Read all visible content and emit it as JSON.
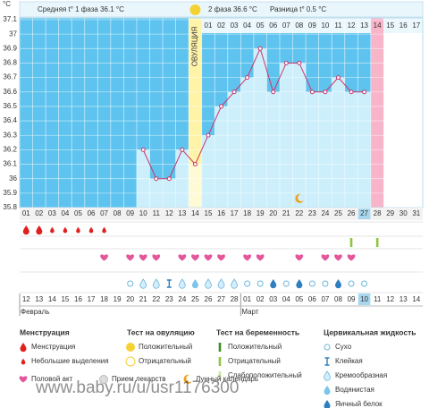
{
  "chart_data": {
    "type": "line",
    "unit_label": "°C",
    "header": {
      "phase1": "Средняя t° 1 фаза 36.1 °C",
      "phase2": "2 фаза 36.6 °C",
      "difference": "Разница t° 0.5 °C"
    },
    "categories": [
      "01",
      "02",
      "03",
      "04",
      "05",
      "06",
      "07",
      "08",
      "09",
      "10",
      "11",
      "12",
      "13",
      "14",
      "15",
      "16",
      "17",
      "18",
      "19",
      "20",
      "21",
      "22",
      "23",
      "24",
      "25",
      "26",
      "27",
      "28",
      "29",
      "30",
      "31"
    ],
    "values": [
      null,
      null,
      null,
      null,
      null,
      null,
      null,
      null,
      null,
      36.2,
      36.0,
      36.0,
      36.2,
      36.1,
      36.3,
      36.5,
      36.6,
      36.7,
      36.9,
      36.6,
      36.8,
      36.8,
      36.6,
      36.6,
      36.7,
      36.6,
      36.6,
      null,
      null,
      null,
      null
    ],
    "color": "#c8376b",
    "ylim": [
      35.8,
      37.1
    ],
    "yticks": [
      35.8,
      35.9,
      36,
      36.1,
      36.2,
      36.3,
      36.4,
      36.5,
      36.6,
      36.7,
      36.8,
      36.9,
      37,
      37.1
    ],
    "grid": true,
    "ovulation_day": 14,
    "ovulation_label": "ОВУЛЯЦИЯ",
    "post_ovulation_labels": [
      "01",
      "02",
      "03",
      "04",
      "05",
      "06",
      "07",
      "08",
      "09",
      "10",
      "11",
      "12",
      "13",
      "14",
      "15",
      "16",
      "17"
    ],
    "today_day": 27,
    "expected_period_day": 28,
    "moon_day": 22,
    "menstruation_days": [
      1,
      2
    ],
    "spotting_days": [
      3,
      4,
      5,
      6,
      7
    ],
    "pregnancy_test_negative_days": [
      26,
      28
    ],
    "intercourse_days": [
      7,
      9,
      10,
      11,
      13,
      14,
      15,
      16,
      18,
      19,
      22,
      24,
      25,
      26
    ],
    "cervical": {
      "dry": [
        9,
        18,
        19,
        21,
        23,
        24,
        26,
        27
      ],
      "sticky": [
        12
      ],
      "creamy": [
        10,
        11,
        13,
        15,
        16,
        17
      ],
      "watery": [
        14
      ],
      "eggwhite": [
        20,
        22,
        25
      ]
    },
    "dates": [
      "12",
      "13",
      "14",
      "15",
      "16",
      "17",
      "18",
      "19",
      "20",
      "21",
      "22",
      "23",
      "24",
      "25",
      "26",
      "27",
      "28",
      "01",
      "02",
      "03",
      "04",
      "05",
      "06",
      "07",
      "08",
      "09",
      "10",
      "11",
      "12",
      "13",
      "14"
    ],
    "weekend_days": [
      3,
      4,
      10,
      11,
      17,
      24,
      25,
      31
    ],
    "months": [
      {
        "label": "Февраль",
        "start_day": 1
      },
      {
        "label": "Март",
        "start_day": 18
      }
    ]
  },
  "legend": {
    "menstruation": {
      "title": "Менструация",
      "items": [
        "Менструация",
        "Небольшие выделения"
      ]
    },
    "ovulation_test": {
      "title": "Тест на овуляцию",
      "items": [
        "Положительный",
        "Отрицательный"
      ]
    },
    "pregnancy_test": {
      "title": "Тест на беременность",
      "items": [
        "Положительный",
        "Отрицательный",
        "Слабоположительный"
      ]
    },
    "cervical": {
      "title": "Цервикальная жидкость",
      "items": [
        "Сухо",
        "Клейкая",
        "Кремообразная",
        "Водянистая",
        "Яичный белок"
      ]
    },
    "other": [
      "Половой акт",
      "Прием лекарств",
      "Лунный календарь"
    ]
  },
  "watermark": "www.baby.ru/u/usr1176300"
}
